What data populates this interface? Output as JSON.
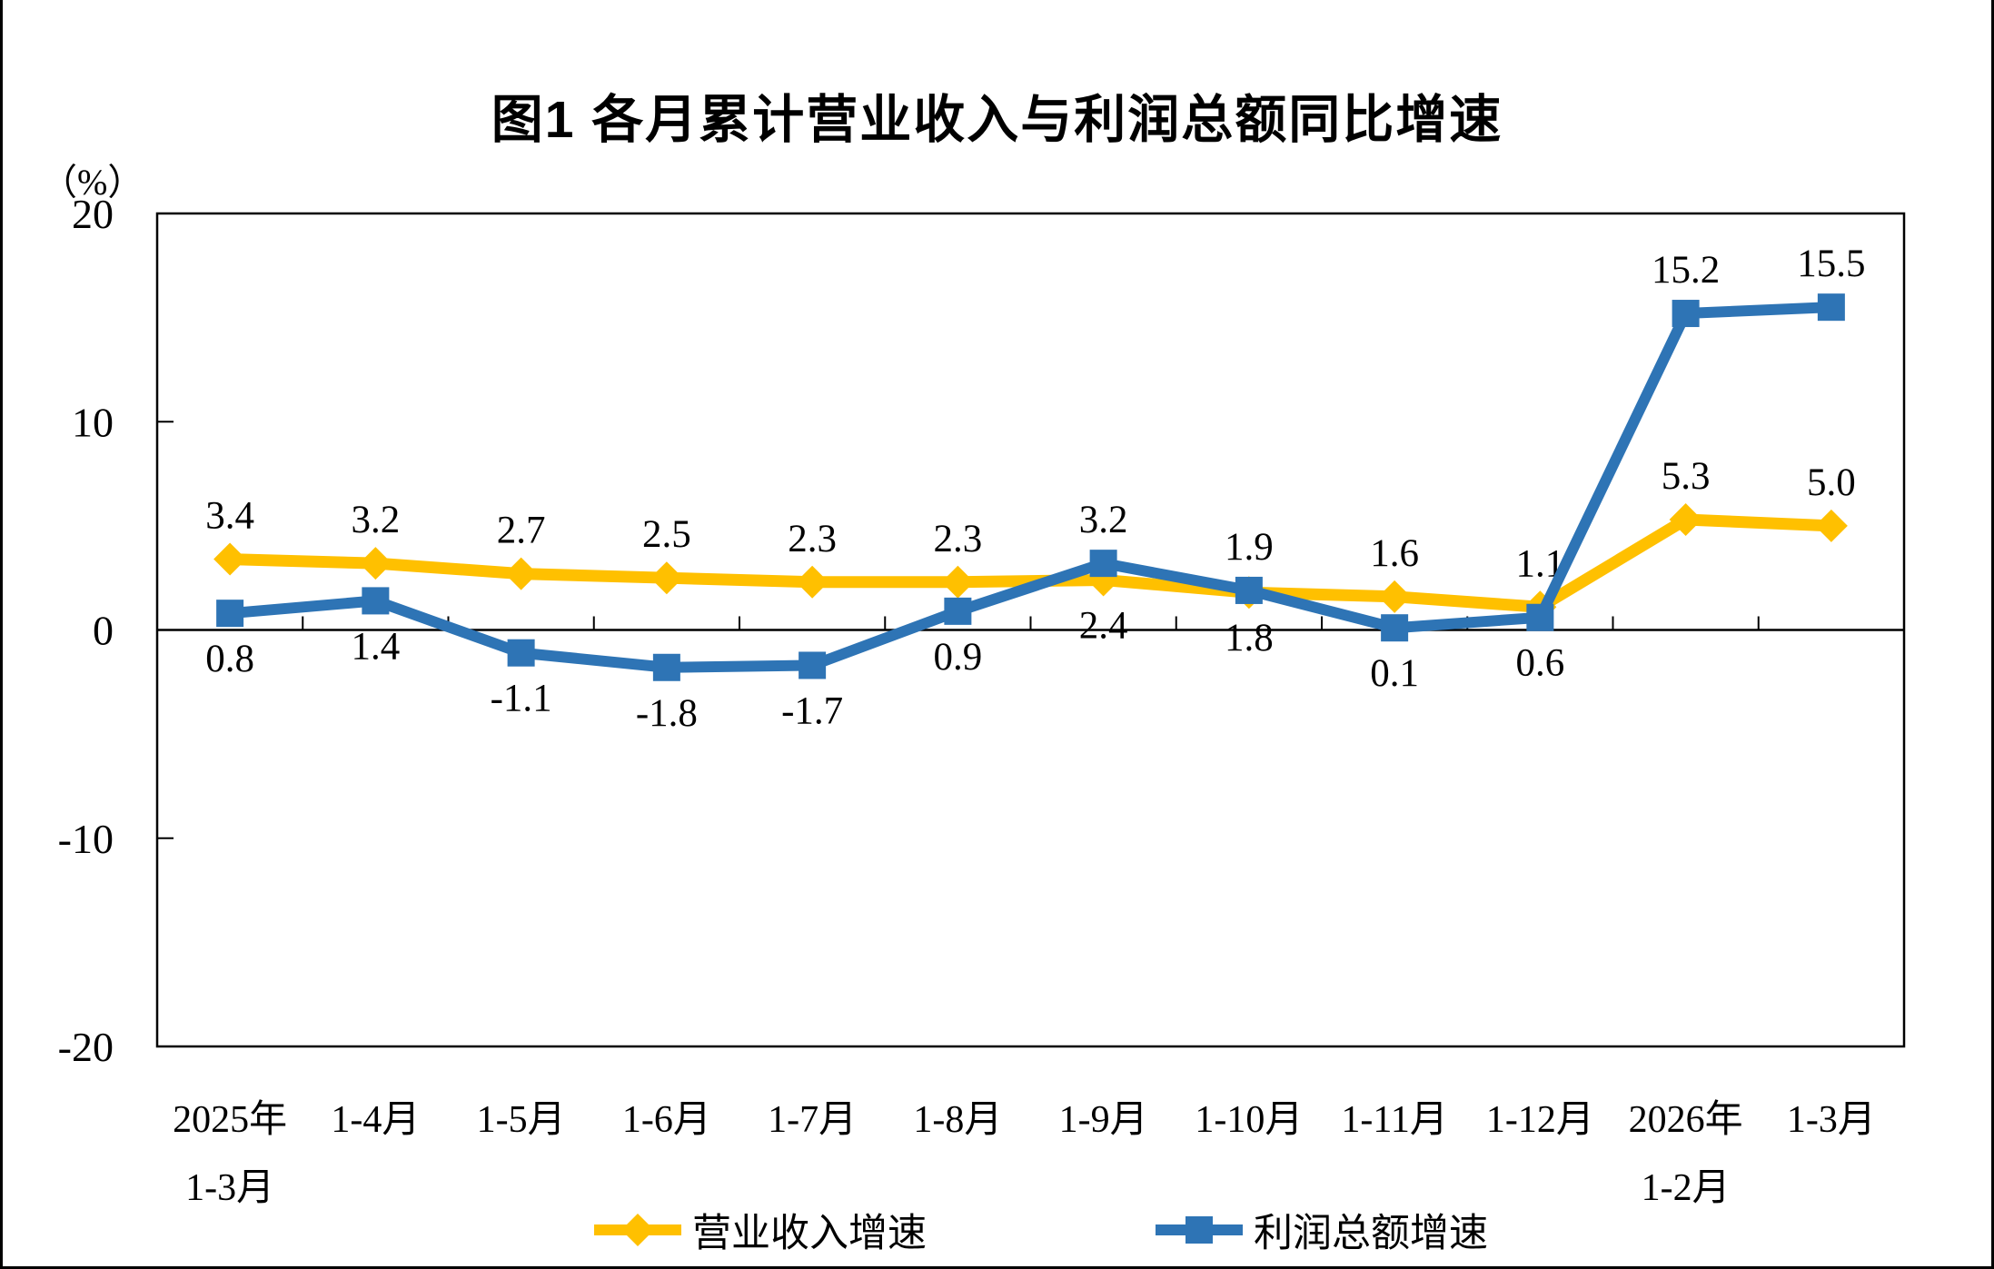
{
  "figure": {
    "title": "图1 各月累计营业收入与利润总额同比增速",
    "y_axis_unit": "（%）"
  },
  "legend": [
    {
      "label": "营业收入增速",
      "color": "#FFC000",
      "marker": "diamond"
    },
    {
      "label": "利润总额增速",
      "color": "#2E74B5",
      "marker": "square"
    }
  ],
  "chart_data": {
    "type": "line",
    "title": "图1 各月累计营业收入与利润总额同比增速",
    "y_unit": "（%）",
    "xlabel": "",
    "ylabel": "（%）",
    "ylim": [
      -20,
      20
    ],
    "yticks": [
      20,
      10,
      0,
      -10,
      -20
    ],
    "grid": false,
    "legend_position": "bottom",
    "categories": [
      [
        "2025年",
        "1-3月"
      ],
      [
        "1-4月"
      ],
      [
        "1-5月"
      ],
      [
        "1-6月"
      ],
      [
        "1-7月"
      ],
      [
        "1-8月"
      ],
      [
        "1-9月"
      ],
      [
        "1-10月"
      ],
      [
        "1-11月"
      ],
      [
        "1-12月"
      ],
      [
        "2026年",
        "1-2月"
      ],
      [
        "1-3月"
      ]
    ],
    "series": [
      {
        "name": "营业收入增速",
        "color": "#FFC000",
        "marker": "diamond",
        "values": [
          3.4,
          3.2,
          2.7,
          2.5,
          2.3,
          2.3,
          2.4,
          1.8,
          1.6,
          1.1,
          5.3,
          5.0
        ],
        "label_side": [
          "above",
          "above",
          "above",
          "above",
          "above",
          "above",
          "below",
          "below",
          "above",
          "above",
          "above",
          "above"
        ]
      },
      {
        "name": "利润总额增速",
        "color": "#2E74B5",
        "marker": "square",
        "values": [
          0.8,
          1.4,
          -1.1,
          -1.8,
          -1.7,
          0.9,
          3.2,
          1.9,
          0.1,
          0.6,
          15.2,
          15.5
        ],
        "label_side": [
          "below",
          "below",
          "below",
          "below",
          "below",
          "below",
          "above",
          "above",
          "below",
          "below",
          "above",
          "above"
        ]
      }
    ]
  }
}
